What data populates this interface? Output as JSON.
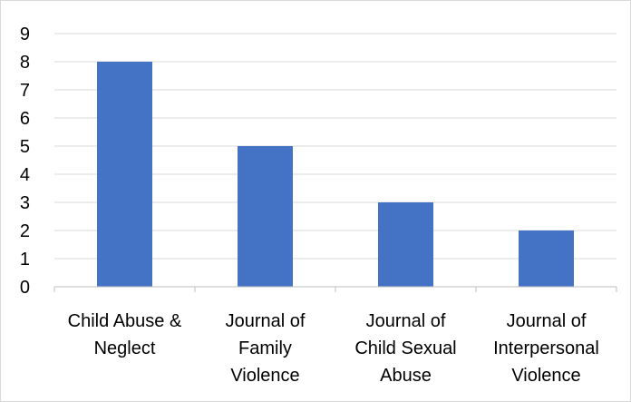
{
  "chart_data": {
    "type": "bar",
    "categories": [
      [
        "Child Abuse &",
        "Neglect"
      ],
      [
        "Journal of",
        "Family",
        "Violence"
      ],
      [
        "Journal of",
        "Child Sexual",
        "Abuse"
      ],
      [
        "Journal of",
        "Interpersonal",
        "Violence"
      ]
    ],
    "values": [
      8,
      5,
      3,
      2
    ],
    "title": "",
    "xlabel": "",
    "ylabel": "",
    "ylim": [
      0,
      9
    ],
    "yticks": [
      "0",
      "1",
      "2",
      "3",
      "4",
      "5",
      "6",
      "7",
      "8",
      "9"
    ],
    "grid": true,
    "legend": "none",
    "bar_color": "#4472c4",
    "grid_color": "#d9d9d9",
    "axis_color": "#bfbfbf"
  }
}
